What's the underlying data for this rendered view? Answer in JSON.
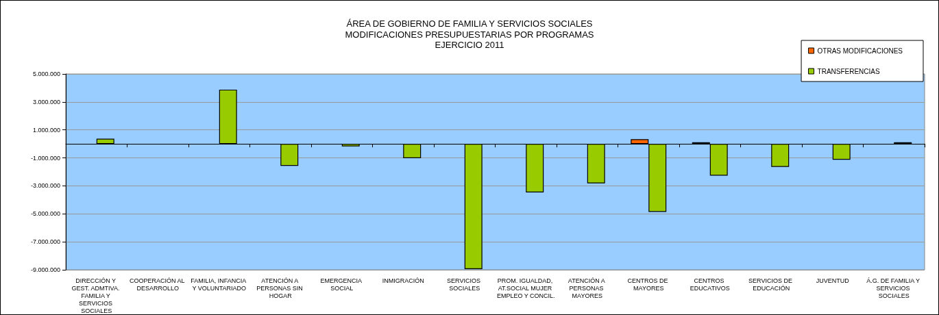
{
  "chart_data": {
    "type": "bar",
    "title": "ÁREA DE GOBIERNO DE FAMILIA Y SERVICIOS SOCIALES",
    "subtitle": "MODIFICACIONES PRESUPUESTARIAS POR PROGRAMAS\nEJERCICIO 2011",
    "categories": [
      "DIRECCIÓN Y GEST. ADMTIVA. FAMILIA Y SERVICIOS SOCIALES",
      "COOPERACIÓN AL DESARROLLO",
      "FAMILIA, INFANCIA Y VOLUNTARIADO",
      "ATENCIÓN A PERSONAS SIN HOGAR",
      "EMERGENCIA SOCIAL",
      "INMIGRACIÓN",
      "SERVICIOS SOCIALES",
      "PROM. IGUALDAD, AT.SOCIAL MUJER EMPLEO Y CONCIL.",
      "ATENCIÓN A PERSONAS MAYORES",
      "CENTROS DE MAYORES",
      "CENTROS EDUCATIVOS",
      "SERVICIOS DE EDUCACIÓN",
      "JUVENTUD",
      "Á.G. DE FAMILIA Y SERVICIOS SOCIALES"
    ],
    "series": [
      {
        "name": "OTRAS MODIFICACIONES",
        "color": "#ff6600",
        "values": [
          null,
          null,
          null,
          null,
          null,
          null,
          null,
          null,
          null,
          340000,
          120000,
          null,
          null,
          null
        ]
      },
      {
        "name": "TRANSFERENCIAS",
        "color": "#99cc00",
        "values": [
          370000,
          null,
          3880000,
          -1570000,
          -180000,
          -1020000,
          -8950000,
          -3470000,
          -2820000,
          -4860000,
          -2270000,
          -1640000,
          -1130000,
          120000
        ]
      }
    ],
    "ylim": [
      -9000000,
      5000000
    ],
    "yticks": [
      {
        "value": 5000000,
        "label": "5.000.000"
      },
      {
        "value": 3000000,
        "label": "3.000.000"
      },
      {
        "value": 1000000,
        "label": "1.000.000"
      },
      {
        "value": -1000000,
        "label": "-1.000.000"
      },
      {
        "value": -3000000,
        "label": "-3.000.000"
      },
      {
        "value": -5000000,
        "label": "-5.000.000"
      },
      {
        "value": -7000000,
        "label": "-7.000.000"
      },
      {
        "value": -9000000,
        "label": "-9.000.000"
      }
    ],
    "grid": "y",
    "legend": "top right"
  }
}
